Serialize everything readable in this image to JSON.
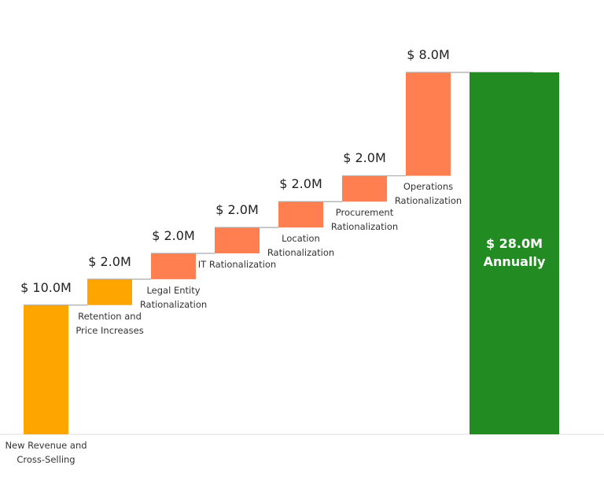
{
  "chart_data": {
    "type": "waterfall",
    "categories": [
      "New Revenue and Cross-Selling",
      "Retention and Price Increases",
      "Legal Entity Rationalization",
      "IT Rationalization",
      "Location Rationalization",
      "Procurement Rationalization",
      "Operations Rationalization"
    ],
    "values": [
      10,
      2,
      2,
      2,
      2,
      2,
      8
    ],
    "value_labels": [
      "$ 10.0M",
      "$ 2.0M",
      "$ 2.0M",
      "$ 2.0M",
      "$ 2.0M",
      "$ 2.0M",
      "$ 8.0M"
    ],
    "colors": [
      "#ffa500",
      "#ffa500",
      "#ff7f50",
      "#ff7f50",
      "#ff7f50",
      "#ff7f50",
      "#ff7f50"
    ],
    "total": {
      "value": 28,
      "value_label": "$ 28.0M",
      "label": "Annually",
      "color": "#228b22"
    },
    "ylim": [
      0,
      28
    ]
  }
}
